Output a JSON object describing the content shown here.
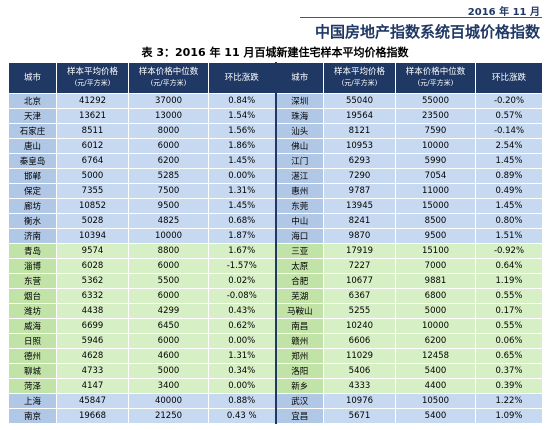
{
  "header": {
    "date": "2016 年 11 月",
    "title": "中国房地产指数系统百城价格指数"
  },
  "table": {
    "title": "表 3：2016 年 11 月百城新建住宅样本平均价格指数",
    "columns": [
      {
        "text": "城市"
      },
      {
        "text": "样本平均价格",
        "unit": "(元/平方米)"
      },
      {
        "text": "样本价格中位数",
        "unit": "(元/平方米)"
      },
      {
        "text": "环比涨跌"
      },
      {
        "text": "城市"
      },
      {
        "text": "样本平均价格",
        "unit": "(元/平方米)"
      },
      {
        "text": "样本价格中位数",
        "unit": "(元/平方米)"
      },
      {
        "text": "环比涨跌"
      }
    ],
    "rows": [
      [
        "北京",
        "41292",
        "37000",
        "0.84%",
        "深圳",
        "55040",
        "55000",
        "-0.20%"
      ],
      [
        "天津",
        "13621",
        "13000",
        "1.54%",
        "珠海",
        "19564",
        "23500",
        "0.57%"
      ],
      [
        "石家庄",
        "8511",
        "8000",
        "1.56%",
        "汕头",
        "8121",
        "7590",
        "-0.14%"
      ],
      [
        "唐山",
        "6012",
        "6000",
        "1.86%",
        "佛山",
        "10953",
        "10000",
        "2.54%"
      ],
      [
        "秦皇岛",
        "6764",
        "6200",
        "1.45%",
        "江门",
        "6293",
        "5990",
        "1.45%"
      ],
      [
        "邯郸",
        "5000",
        "5285",
        "0.00%",
        "湛江",
        "7290",
        "7054",
        "0.89%"
      ],
      [
        "保定",
        "7355",
        "7500",
        "1.31%",
        "惠州",
        "9787",
        "11000",
        "0.49%"
      ],
      [
        "廊坊",
        "10852",
        "9500",
        "1.45%",
        "东莞",
        "13945",
        "15000",
        "1.45%"
      ],
      [
        "衡水",
        "5028",
        "4825",
        "0.68%",
        "中山",
        "8241",
        "8500",
        "0.80%"
      ],
      [
        "济南",
        "10394",
        "10000",
        "1.87%",
        "海口",
        "9870",
        "9500",
        "1.51%"
      ],
      [
        "青岛",
        "9574",
        "8800",
        "1.67%",
        "三亚",
        "17919",
        "15100",
        "-0.92%"
      ],
      [
        "淄博",
        "6028",
        "6000",
        "-1.57%",
        "太原",
        "7227",
        "7000",
        "0.64%"
      ],
      [
        "东营",
        "5362",
        "5500",
        "0.02%",
        "合肥",
        "10677",
        "9881",
        "1.19%"
      ],
      [
        "烟台",
        "6332",
        "6000",
        "-0.08%",
        "芜湖",
        "6367",
        "6800",
        "0.55%"
      ],
      [
        "潍坊",
        "4438",
        "4299",
        "0.43%",
        "马鞍山",
        "5255",
        "5000",
        "0.17%"
      ],
      [
        "威海",
        "6699",
        "6450",
        "0.62%",
        "南昌",
        "10240",
        "10000",
        "0.55%"
      ],
      [
        "日照",
        "5946",
        "6000",
        "0.00%",
        "赣州",
        "6606",
        "6200",
        "0.06%"
      ],
      [
        "德州",
        "4628",
        "4600",
        "1.31%",
        "郑州",
        "11029",
        "12458",
        "0.65%"
      ],
      [
        "聊城",
        "4733",
        "5000",
        "0.34%",
        "洛阳",
        "5406",
        "5400",
        "0.37%"
      ],
      [
        "菏泽",
        "4147",
        "3400",
        "0.00%",
        "新乡",
        "4333",
        "4400",
        "0.39%"
      ],
      [
        "上海",
        "45847",
        "40000",
        "0.88%",
        "武汉",
        "10976",
        "10500",
        "1.22%"
      ],
      [
        "南京",
        "19668",
        "21250",
        "0.43 %",
        "宜昌",
        "5671",
        "5400",
        "1.09%"
      ]
    ]
  }
}
